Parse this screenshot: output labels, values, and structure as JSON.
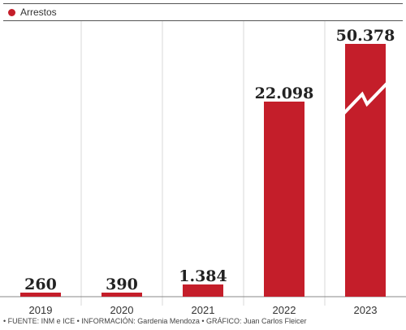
{
  "legend": {
    "label": "Arrestos",
    "color": "#c41e2a"
  },
  "chart_data": {
    "type": "bar",
    "categories": [
      "2019",
      "2020",
      "2021",
      "2022",
      "2023"
    ],
    "series": [
      {
        "name": "Arrestos",
        "values": [
          260,
          390,
          1384,
          22098,
          50378
        ]
      }
    ],
    "value_labels": [
      "260",
      "390",
      "1.384",
      "22.098",
      "50.378"
    ],
    "bar_color": "#c41e2a",
    "axis_break": "2023",
    "grid": "vertical category separators"
  },
  "source": "• FUENTE: INM e ICE • INFORMACIÓN: Gardenia Mendoza • GRÁFICO: Juan Carlos Fleicer"
}
